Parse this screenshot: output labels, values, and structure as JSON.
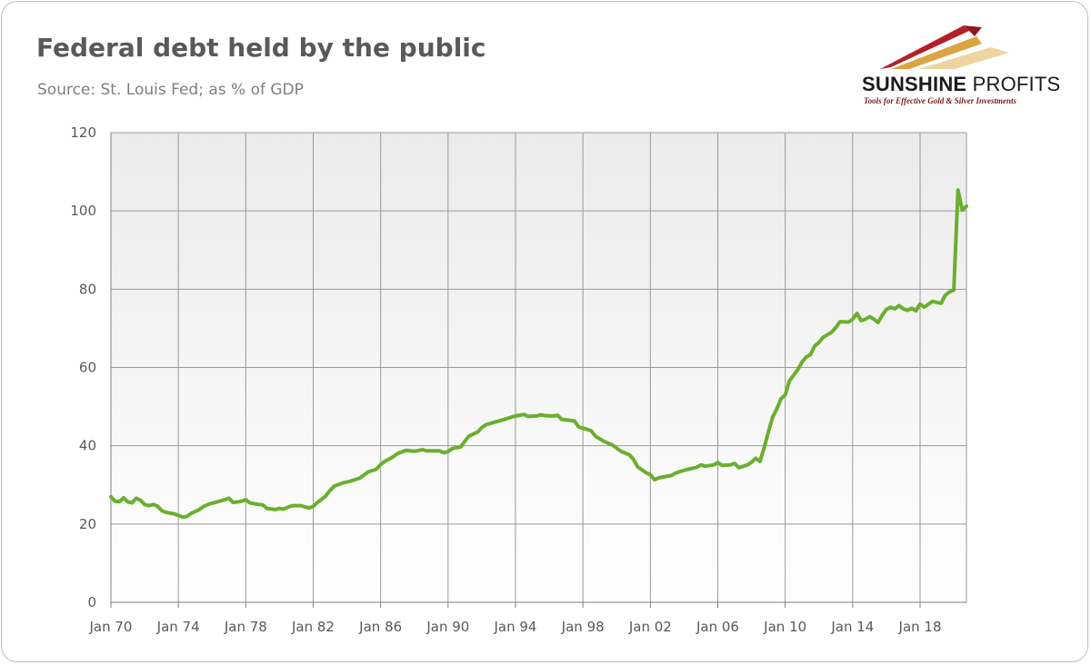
{
  "title": "Federal debt held by the public",
  "subtitle": "Source: St. Louis Fed; as % of GDP",
  "logo": {
    "name_bold": "SUNSHINE",
    "name_regular": "PROFITS",
    "tagline": "Tools for Effective Gold & Silver Investments",
    "colors": [
      "#b3202a",
      "#d9a441",
      "#e8c98a"
    ]
  },
  "chart_data": {
    "type": "line",
    "title": "Federal debt held by the public",
    "subtitle": "Source: St. Louis Fed; as % of GDP",
    "xlabel": "",
    "ylabel": "",
    "x_range": [
      1970.0,
      2020.75
    ],
    "ylim": [
      0,
      120
    ],
    "y_ticks": [
      0,
      20,
      40,
      60,
      80,
      100,
      120
    ],
    "x_tick_labels": [
      "Jan 70",
      "Jan 74",
      "Jan 78",
      "Jan 82",
      "Jan 86",
      "Jan 90",
      "Jan 94",
      "Jan 98",
      "Jan 02",
      "Jan 06",
      "Jan 10",
      "Jan 14",
      "Jan 18"
    ],
    "x_tick_years": [
      1970,
      1974,
      1978,
      1982,
      1986,
      1990,
      1994,
      1998,
      2002,
      2006,
      2010,
      2014,
      2018
    ],
    "grid": true,
    "line_color": "#6aaf2e",
    "series": [
      {
        "points": [
          [
            1970.0,
            27
          ],
          [
            1970.25,
            25.8
          ],
          [
            1970.5,
            25.7
          ],
          [
            1970.75,
            26.7
          ],
          [
            1971.0,
            25.7
          ],
          [
            1971.25,
            25.4
          ],
          [
            1971.5,
            26.6
          ],
          [
            1971.75,
            26.1
          ],
          [
            1972.0,
            25.0
          ],
          [
            1972.25,
            24.7
          ],
          [
            1972.5,
            25.0
          ],
          [
            1972.75,
            24.6
          ],
          [
            1973.0,
            23.5
          ],
          [
            1973.25,
            23.0
          ],
          [
            1973.75,
            22.6
          ],
          [
            1974.25,
            21.8
          ],
          [
            1974.5,
            21.9
          ],
          [
            1974.75,
            22.7
          ],
          [
            1975.25,
            23.7
          ],
          [
            1975.5,
            24.5
          ],
          [
            1975.75,
            25.0
          ],
          [
            1976.25,
            25.6
          ],
          [
            1976.75,
            26.2
          ],
          [
            1977.0,
            26.6
          ],
          [
            1977.25,
            25.5
          ],
          [
            1977.75,
            25.8
          ],
          [
            1978.0,
            26.2
          ],
          [
            1978.25,
            25.4
          ],
          [
            1978.75,
            25.0
          ],
          [
            1979.0,
            24.9
          ],
          [
            1979.25,
            24.0
          ],
          [
            1979.75,
            23.7
          ],
          [
            1980.0,
            24.0
          ],
          [
            1980.25,
            23.8
          ],
          [
            1980.5,
            24.3
          ],
          [
            1980.75,
            24.7
          ],
          [
            1981.25,
            24.7
          ],
          [
            1981.75,
            24.1
          ],
          [
            1982.0,
            24.5
          ],
          [
            1982.25,
            25.5
          ],
          [
            1982.5,
            26.3
          ],
          [
            1982.75,
            27.2
          ],
          [
            1983.0,
            28.6
          ],
          [
            1983.25,
            29.7
          ],
          [
            1983.75,
            30.5
          ],
          [
            1984.25,
            31.0
          ],
          [
            1984.75,
            31.7
          ],
          [
            1985.0,
            32.5
          ],
          [
            1985.25,
            33.3
          ],
          [
            1985.75,
            34.0
          ],
          [
            1986.0,
            35.2
          ],
          [
            1986.25,
            36.0
          ],
          [
            1986.75,
            37.2
          ],
          [
            1987.0,
            38.0
          ],
          [
            1987.5,
            38.8
          ],
          [
            1988.0,
            38.6
          ],
          [
            1988.5,
            39.0
          ],
          [
            1988.75,
            38.7
          ],
          [
            1989.5,
            38.7
          ],
          [
            1989.75,
            38.2
          ],
          [
            1990.0,
            38.5
          ],
          [
            1990.25,
            39.3
          ],
          [
            1990.75,
            39.7
          ],
          [
            1991.0,
            41.2
          ],
          [
            1991.25,
            42.5
          ],
          [
            1991.75,
            43.5
          ],
          [
            1992.0,
            44.6
          ],
          [
            1992.25,
            45.4
          ],
          [
            1992.75,
            46.0
          ],
          [
            1993.25,
            46.6
          ],
          [
            1993.75,
            47.3
          ],
          [
            1994.0,
            47.6
          ],
          [
            1994.25,
            47.8
          ],
          [
            1994.5,
            48.0
          ],
          [
            1994.75,
            47.5
          ],
          [
            1995.25,
            47.6
          ],
          [
            1995.5,
            47.9
          ],
          [
            1995.75,
            47.7
          ],
          [
            1996.25,
            47.6
          ],
          [
            1996.5,
            47.8
          ],
          [
            1996.75,
            46.7
          ],
          [
            1997.25,
            46.5
          ],
          [
            1997.5,
            46.3
          ],
          [
            1997.75,
            44.8
          ],
          [
            1998.25,
            44.2
          ],
          [
            1998.5,
            43.8
          ],
          [
            1998.75,
            42.4
          ],
          [
            1999.25,
            41.1
          ],
          [
            1999.75,
            40.2
          ],
          [
            2000.0,
            39.4
          ],
          [
            2000.25,
            38.6
          ],
          [
            2000.75,
            37.7
          ],
          [
            2001.0,
            36.5
          ],
          [
            2001.25,
            34.6
          ],
          [
            2001.75,
            33.1
          ],
          [
            2002.0,
            32.6
          ],
          [
            2002.25,
            31.3
          ],
          [
            2002.5,
            31.8
          ],
          [
            2002.75,
            32.0
          ],
          [
            2003.25,
            32.4
          ],
          [
            2003.5,
            33.0
          ],
          [
            2003.75,
            33.4
          ],
          [
            2004.25,
            34.0
          ],
          [
            2004.75,
            34.5
          ],
          [
            2005.0,
            35.1
          ],
          [
            2005.25,
            34.8
          ],
          [
            2005.75,
            35.1
          ],
          [
            2006.0,
            35.7
          ],
          [
            2006.25,
            35.0
          ],
          [
            2006.75,
            35.1
          ],
          [
            2007.0,
            35.5
          ],
          [
            2007.25,
            34.4
          ],
          [
            2007.75,
            35.1
          ],
          [
            2008.0,
            35.8
          ],
          [
            2008.25,
            36.8
          ],
          [
            2008.5,
            36.0
          ],
          [
            2008.75,
            39.5
          ],
          [
            2009.0,
            43.5
          ],
          [
            2009.25,
            47.3
          ],
          [
            2009.5,
            49.4
          ],
          [
            2009.75,
            52.0
          ],
          [
            2010.0,
            53.0
          ],
          [
            2010.25,
            56.6
          ],
          [
            2010.5,
            58.0
          ],
          [
            2010.75,
            59.5
          ],
          [
            2011.0,
            61.4
          ],
          [
            2011.25,
            62.7
          ],
          [
            2011.5,
            63.3
          ],
          [
            2011.75,
            65.5
          ],
          [
            2012.0,
            66.4
          ],
          [
            2012.25,
            67.7
          ],
          [
            2012.75,
            69.0
          ],
          [
            2013.0,
            70.2
          ],
          [
            2013.25,
            71.7
          ],
          [
            2013.75,
            71.6
          ],
          [
            2014.0,
            72.3
          ],
          [
            2014.25,
            73.8
          ],
          [
            2014.5,
            72.0
          ],
          [
            2014.75,
            72.3
          ],
          [
            2015.0,
            73.0
          ],
          [
            2015.25,
            72.4
          ],
          [
            2015.5,
            71.5
          ],
          [
            2015.75,
            73.3
          ],
          [
            2016.0,
            74.8
          ],
          [
            2016.25,
            75.4
          ],
          [
            2016.5,
            75.0
          ],
          [
            2016.75,
            75.8
          ],
          [
            2017.0,
            75.0
          ],
          [
            2017.25,
            74.6
          ],
          [
            2017.5,
            75.1
          ],
          [
            2017.75,
            74.5
          ],
          [
            2018.0,
            76.2
          ],
          [
            2018.25,
            75.4
          ],
          [
            2018.5,
            76.2
          ],
          [
            2018.75,
            76.9
          ],
          [
            2019.0,
            76.6
          ],
          [
            2019.25,
            76.4
          ],
          [
            2019.5,
            78.5
          ],
          [
            2019.75,
            79.3
          ],
          [
            2020.0,
            79.8
          ],
          [
            2020.25,
            105.3
          ],
          [
            2020.5,
            100.2
          ],
          [
            2020.75,
            101.2
          ]
        ]
      }
    ]
  }
}
